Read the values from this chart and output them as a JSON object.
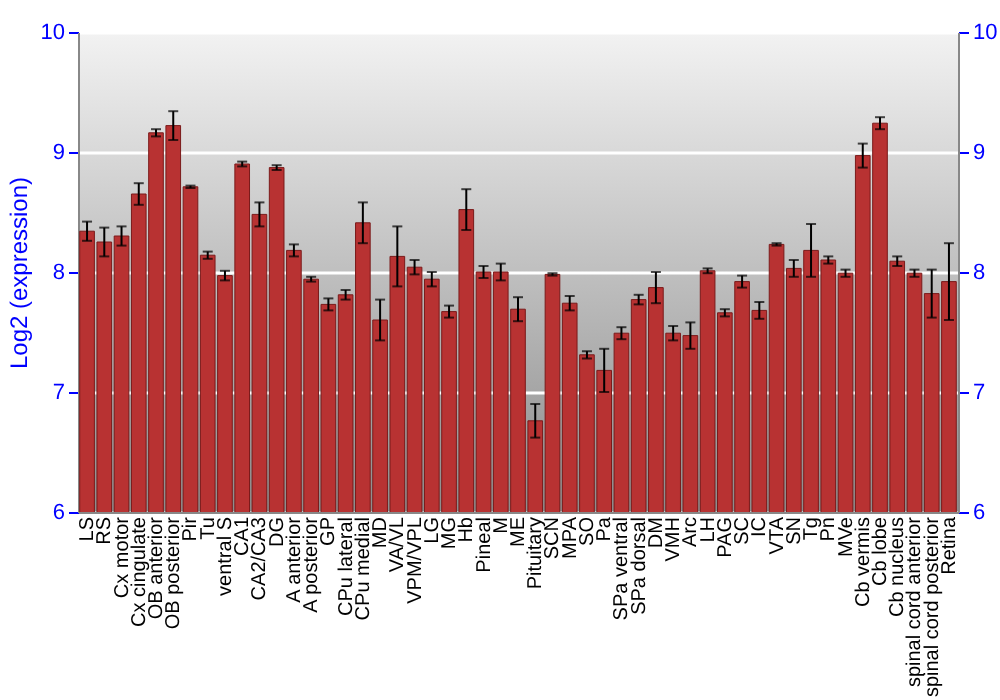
{
  "chart_data": {
    "type": "bar",
    "ylabel": "Log2 (expression)",
    "categories": [
      "LS",
      "RS",
      "Cx motor",
      "Cx cingulate",
      "OB anterior",
      "OB posterior",
      "Pir",
      "Tu",
      "ventral S",
      "CA1",
      "CA2/CA3",
      "DG",
      "A anterior",
      "A posterior",
      "GP",
      "CPu lateral",
      "CPu medial",
      "MD",
      "VA/VL",
      "VPM/VPL",
      "LG",
      "MG",
      "Hb",
      "Pineal",
      "M",
      "ME",
      "Pituitary",
      "SCN",
      "MPA",
      "SO",
      "Pa",
      "SPa ventral",
      "SPa dorsal",
      "DM",
      "VMH",
      "Arc",
      "LH",
      "PAG",
      "SC",
      "IC",
      "VTA",
      "SN",
      "Tg",
      "Pn",
      "MVe",
      "Cb vermis",
      "Cb lobe",
      "Cb nucleus",
      "spinal cord anterior",
      "spinal cord posterior",
      "Retina"
    ],
    "series": [
      {
        "color": "#b83232",
        "values": [
          8.34,
          8.25,
          8.3,
          8.65,
          9.16,
          9.22,
          8.71,
          8.14,
          7.97,
          8.9,
          8.48,
          8.87,
          8.18,
          7.94,
          7.73,
          7.81,
          8.41,
          7.6,
          8.13,
          8.04,
          7.94,
          7.67,
          8.52,
          8.0,
          8.0,
          7.69,
          6.76,
          7.98,
          7.74,
          7.31,
          7.18,
          7.49,
          7.77,
          7.87,
          7.49,
          7.47,
          8.01,
          7.66,
          7.92,
          7.68,
          8.23,
          8.03,
          8.18,
          8.1,
          7.99,
          8.97,
          9.24,
          8.09,
          7.99,
          7.82,
          7.92
        ],
        "errors": [
          0.08,
          0.12,
          0.08,
          0.09,
          0.03,
          0.12,
          0.01,
          0.03,
          0.04,
          0.02,
          0.1,
          0.02,
          0.05,
          0.02,
          0.05,
          0.04,
          0.17,
          0.17,
          0.25,
          0.06,
          0.06,
          0.05,
          0.17,
          0.05,
          0.07,
          0.1,
          0.14,
          0.01,
          0.06,
          0.03,
          0.18,
          0.05,
          0.04,
          0.13,
          0.06,
          0.11,
          0.02,
          0.03,
          0.05,
          0.07,
          0.01,
          0.07,
          0.22,
          0.03,
          0.03,
          0.1,
          0.05,
          0.04,
          0.03,
          0.2,
          0.32
        ]
      }
    ],
    "ylim": [
      6,
      10
    ],
    "yticks": [
      6,
      7,
      8,
      9,
      10
    ],
    "y2lim": [
      6,
      10
    ],
    "y2ticks": [
      6,
      7,
      8,
      9,
      10
    ],
    "grid": "y"
  }
}
